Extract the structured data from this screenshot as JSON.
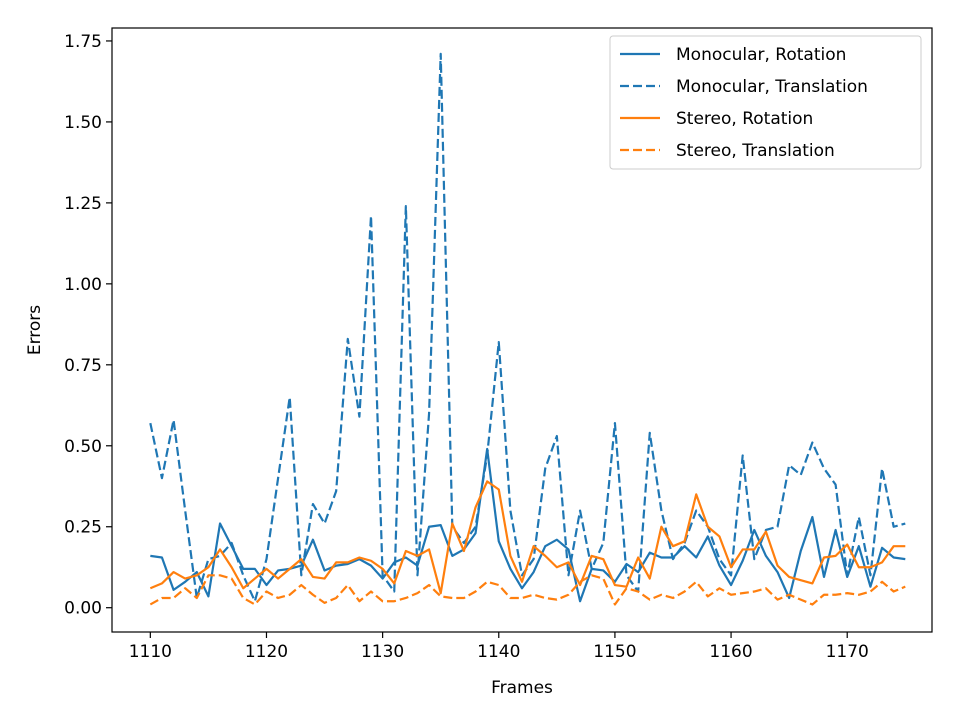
{
  "chart_data": {
    "type": "line",
    "xlabel": "Frames",
    "ylabel": "Errors",
    "xlim": [
      1106.7,
      1177.3
    ],
    "ylim": [
      -0.075,
      1.79
    ],
    "xticks": [
      1110,
      1120,
      1130,
      1140,
      1150,
      1160,
      1170
    ],
    "yticks": [
      0.0,
      0.25,
      0.5,
      0.75,
      1.0,
      1.25,
      1.5,
      1.75
    ],
    "ytick_labels": [
      "0.00",
      "0.25",
      "0.50",
      "0.75",
      "1.00",
      "1.25",
      "1.50",
      "1.75"
    ],
    "legend_position": "top-right",
    "x": [
      1110,
      1111,
      1112,
      1113,
      1114,
      1115,
      1116,
      1117,
      1118,
      1119,
      1120,
      1121,
      1122,
      1123,
      1124,
      1125,
      1126,
      1127,
      1128,
      1129,
      1130,
      1131,
      1132,
      1133,
      1134,
      1135,
      1136,
      1137,
      1138,
      1139,
      1140,
      1141,
      1142,
      1143,
      1144,
      1145,
      1146,
      1147,
      1148,
      1149,
      1150,
      1151,
      1152,
      1153,
      1154,
      1155,
      1156,
      1157,
      1158,
      1159,
      1160,
      1161,
      1162,
      1163,
      1164,
      1165,
      1166,
      1167,
      1168,
      1169,
      1170,
      1171,
      1172,
      1173,
      1174,
      1175
    ],
    "series": [
      {
        "name": "Monocular, Rotation",
        "color": "#1f77b4",
        "dash": "solid",
        "values": [
          0.16,
          0.155,
          0.055,
          0.08,
          0.11,
          0.035,
          0.26,
          0.19,
          0.12,
          0.12,
          0.07,
          0.115,
          0.12,
          0.13,
          0.21,
          0.115,
          0.13,
          0.135,
          0.15,
          0.13,
          0.09,
          0.14,
          0.155,
          0.13,
          0.25,
          0.255,
          0.16,
          0.18,
          0.23,
          0.49,
          0.205,
          0.12,
          0.06,
          0.11,
          0.19,
          0.21,
          0.18,
          0.02,
          0.12,
          0.115,
          0.08,
          0.135,
          0.11,
          0.17,
          0.155,
          0.155,
          0.19,
          0.155,
          0.22,
          0.13,
          0.07,
          0.145,
          0.24,
          0.16,
          0.11,
          0.03,
          0.175,
          0.28,
          0.095,
          0.24,
          0.095,
          0.19,
          0.065,
          0.185,
          0.155,
          0.15
        ]
      },
      {
        "name": "Monocular, Translation",
        "color": "#1f77b4",
        "dash": "dashed",
        "values": [
          0.57,
          0.4,
          0.58,
          0.3,
          0.03,
          0.15,
          0.16,
          0.2,
          0.1,
          0.02,
          0.15,
          0.4,
          0.65,
          0.1,
          0.32,
          0.26,
          0.36,
          0.83,
          0.59,
          1.21,
          0.1,
          0.05,
          1.24,
          0.1,
          0.6,
          1.71,
          0.25,
          0.2,
          0.25,
          0.47,
          0.82,
          0.3,
          0.1,
          0.15,
          0.43,
          0.53,
          0.1,
          0.3,
          0.12,
          0.2,
          0.57,
          0.1,
          0.05,
          0.54,
          0.3,
          0.15,
          0.2,
          0.3,
          0.25,
          0.15,
          0.1,
          0.47,
          0.15,
          0.24,
          0.25,
          0.44,
          0.41,
          0.51,
          0.43,
          0.38,
          0.1,
          0.28,
          0.1,
          0.43,
          0.25,
          0.26
        ]
      },
      {
        "name": "Stereo, Rotation",
        "color": "#ff7f0e",
        "dash": "solid",
        "values": [
          0.06,
          0.075,
          0.11,
          0.09,
          0.1,
          0.125,
          0.18,
          0.125,
          0.06,
          0.09,
          0.12,
          0.09,
          0.12,
          0.15,
          0.095,
          0.09,
          0.14,
          0.14,
          0.155,
          0.145,
          0.12,
          0.075,
          0.175,
          0.16,
          0.18,
          0.045,
          0.26,
          0.175,
          0.31,
          0.39,
          0.365,
          0.16,
          0.08,
          0.19,
          0.16,
          0.125,
          0.14,
          0.07,
          0.16,
          0.15,
          0.07,
          0.065,
          0.155,
          0.09,
          0.25,
          0.19,
          0.205,
          0.35,
          0.25,
          0.22,
          0.125,
          0.18,
          0.18,
          0.235,
          0.13,
          0.095,
          0.085,
          0.075,
          0.155,
          0.16,
          0.195,
          0.125,
          0.125,
          0.14,
          0.19,
          0.19
        ]
      },
      {
        "name": "Stereo, Translation",
        "color": "#ff7f0e",
        "dash": "dashed",
        "values": [
          0.01,
          0.03,
          0.03,
          0.06,
          0.03,
          0.1,
          0.1,
          0.09,
          0.03,
          0.01,
          0.05,
          0.03,
          0.04,
          0.07,
          0.04,
          0.015,
          0.03,
          0.07,
          0.02,
          0.05,
          0.02,
          0.02,
          0.03,
          0.045,
          0.07,
          0.035,
          0.03,
          0.03,
          0.05,
          0.08,
          0.07,
          0.03,
          0.03,
          0.04,
          0.03,
          0.025,
          0.04,
          0.08,
          0.1,
          0.09,
          0.01,
          0.06,
          0.05,
          0.025,
          0.04,
          0.03,
          0.05,
          0.08,
          0.035,
          0.06,
          0.04,
          0.045,
          0.05,
          0.06,
          0.025,
          0.04,
          0.025,
          0.01,
          0.04,
          0.04,
          0.045,
          0.04,
          0.05,
          0.08,
          0.05,
          0.065
        ]
      }
    ]
  }
}
